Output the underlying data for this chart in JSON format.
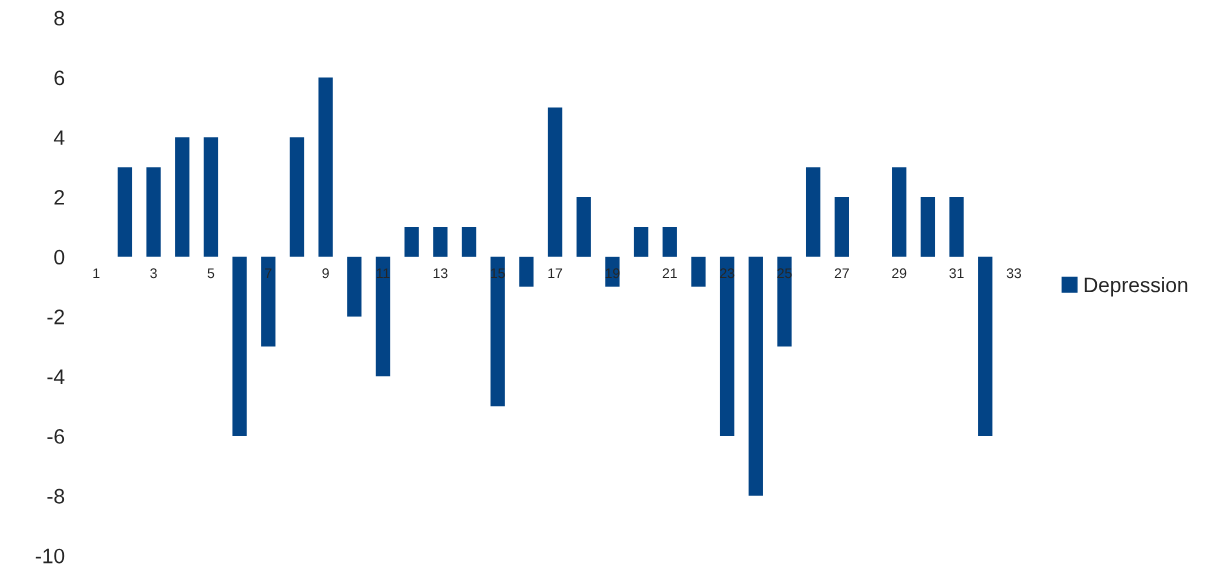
{
  "chart_data": {
    "type": "bar",
    "categories": [
      "1",
      null,
      "3",
      null,
      "5",
      null,
      "7",
      null,
      "9",
      null,
      "11",
      null,
      "13",
      null,
      "15",
      null,
      "17",
      null,
      "19",
      null,
      "21",
      null,
      "23",
      null,
      "25",
      null,
      "27",
      null,
      "29",
      null,
      "31",
      null,
      "33"
    ],
    "series": [
      {
        "name": "Depression",
        "color": "#034486",
        "values": [
          0,
          3,
          3,
          4,
          4,
          -6,
          -3,
          4,
          6,
          -2,
          -4,
          1,
          1,
          1,
          -5,
          -1,
          5,
          2,
          -1,
          1,
          1,
          -1,
          -6,
          -8,
          -3,
          3,
          2,
          0,
          3,
          2,
          2,
          -6,
          0
        ]
      }
    ],
    "ylim": [
      -10,
      8
    ],
    "yticks": [
      -10,
      -8,
      -6,
      -4,
      -2,
      0,
      2,
      4,
      6,
      8
    ],
    "grid": false,
    "legend": "right"
  }
}
